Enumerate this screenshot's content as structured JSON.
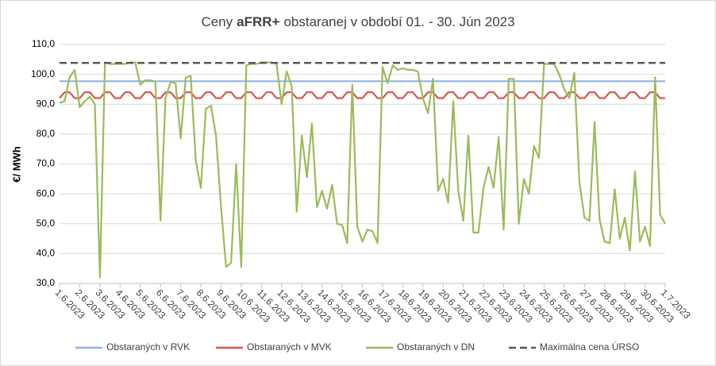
{
  "chart_data": {
    "type": "line",
    "title": [
      "Ceny",
      "aFRR+",
      "obstaranej v období 01. - 30. Jún 2023"
    ],
    "ylabel": "€/ MWh",
    "ylim": [
      30,
      110
    ],
    "yticks": [
      {
        "value": 30,
        "label": "30,0"
      },
      {
        "value": 40,
        "label": "40,0"
      },
      {
        "value": 50,
        "label": "50,0"
      },
      {
        "value": 60,
        "label": "60,0"
      },
      {
        "value": 70,
        "label": "70,0"
      },
      {
        "value": 80,
        "label": "80,0"
      },
      {
        "value": 90,
        "label": "90,0"
      },
      {
        "value": 100,
        "label": "100,0"
      },
      {
        "value": 110,
        "label": "110,0"
      }
    ],
    "xlim": [
      0,
      30
    ],
    "xticks": [
      {
        "value": 0,
        "label": "1.6.2023"
      },
      {
        "value": 1,
        "label": "2.6.2023"
      },
      {
        "value": 2,
        "label": "3.6.2023"
      },
      {
        "value": 3,
        "label": "4.6.2023"
      },
      {
        "value": 4,
        "label": "5.6.2023"
      },
      {
        "value": 5,
        "label": "6.6.2023"
      },
      {
        "value": 6,
        "label": "7.6.2023"
      },
      {
        "value": 7,
        "label": "8.6.2023"
      },
      {
        "value": 8,
        "label": "9.6.2023"
      },
      {
        "value": 9,
        "label": "10.6.2023"
      },
      {
        "value": 10,
        "label": "11.6.2023"
      },
      {
        "value": 11,
        "label": "12.6.2023"
      },
      {
        "value": 12,
        "label": "13.6.2023"
      },
      {
        "value": 13,
        "label": "14.6.2023"
      },
      {
        "value": 14,
        "label": "15.6.2023"
      },
      {
        "value": 15,
        "label": "16.6.2023"
      },
      {
        "value": 16,
        "label": "17.6.2023"
      },
      {
        "value": 17,
        "label": "18.6.2023"
      },
      {
        "value": 18,
        "label": "19.6.2023"
      },
      {
        "value": 19,
        "label": "20.6.2023"
      },
      {
        "value": 20,
        "label": "21.6.2023"
      },
      {
        "value": 21,
        "label": "22.6.2023"
      },
      {
        "value": 22,
        "label": "23.6.2023"
      },
      {
        "value": 23,
        "label": "24.6.2023"
      },
      {
        "value": 24,
        "label": "25.6.2023"
      },
      {
        "value": 25,
        "label": "26.6.2023"
      },
      {
        "value": 26,
        "label": "27.6.2023"
      },
      {
        "value": 27,
        "label": "28.6.2023"
      },
      {
        "value": 28,
        "label": "29.6.2023"
      },
      {
        "value": 29,
        "label": "30.6.2023"
      },
      {
        "value": 30,
        "label": "1.7.2023"
      }
    ],
    "grid": true,
    "legend": "bottom",
    "x": [
      0,
      0.25,
      0.5,
      0.75,
      1,
      1.25,
      1.5,
      1.75,
      2,
      2.25,
      2.5,
      2.75,
      3,
      3.25,
      3.5,
      3.75,
      4,
      4.25,
      4.5,
      4.75,
      5,
      5.25,
      5.5,
      5.75,
      6,
      6.25,
      6.5,
      6.75,
      7,
      7.25,
      7.5,
      7.75,
      8,
      8.25,
      8.5,
      8.75,
      9,
      9.25,
      9.5,
      9.75,
      10,
      10.25,
      10.5,
      10.75,
      11,
      11.25,
      11.5,
      11.75,
      12,
      12.25,
      12.5,
      12.75,
      13,
      13.25,
      13.5,
      13.75,
      14,
      14.25,
      14.5,
      14.75,
      15,
      15.25,
      15.5,
      15.75,
      16,
      16.25,
      16.5,
      16.75,
      17,
      17.25,
      17.5,
      17.75,
      18,
      18.25,
      18.5,
      18.75,
      19,
      19.25,
      19.5,
      19.75,
      20,
      20.25,
      20.5,
      20.75,
      21,
      21.25,
      21.5,
      21.75,
      22,
      22.25,
      22.5,
      22.75,
      23,
      23.25,
      23.5,
      23.75,
      24,
      24.25,
      24.5,
      24.75,
      25,
      25.25,
      25.5,
      25.75,
      26,
      26.25,
      26.5,
      26.75,
      27,
      27.25,
      27.5,
      27.75,
      28,
      28.25,
      28.5,
      28.75,
      29,
      29.25,
      29.5,
      29.75,
      30
    ],
    "series": [
      {
        "name": "Obstaraných v RVK",
        "color": "#8eb4e3",
        "x": [
          0,
          30
        ],
        "values": [
          97.7,
          97.7
        ]
      },
      {
        "name": "Obstaraných v MVK",
        "color": "#d9534f",
        "values": [
          92,
          94,
          94,
          92,
          92,
          94,
          94,
          92,
          92,
          94,
          94,
          92,
          92,
          94,
          94,
          92,
          92,
          94,
          94,
          92,
          92,
          94,
          94,
          92,
          92,
          94,
          94,
          92,
          92,
          94,
          94,
          92,
          92,
          94,
          94,
          92,
          92,
          94,
          94,
          92,
          92,
          94,
          94,
          92,
          92,
          94,
          94,
          92,
          92,
          94,
          94,
          92,
          92,
          94,
          94,
          92,
          92,
          94,
          94,
          92,
          92,
          94,
          94,
          92,
          92,
          94,
          94,
          92,
          92,
          94,
          94,
          92,
          92,
          94,
          94,
          92,
          92,
          94,
          94,
          92,
          92,
          94,
          94,
          92,
          92,
          94,
          94,
          92,
          92,
          94,
          94,
          92,
          92,
          94,
          94,
          92,
          92,
          94,
          94,
          92,
          92,
          94,
          94,
          92,
          92,
          94,
          94,
          92,
          92,
          94,
          94,
          92,
          92,
          94,
          94,
          92,
          92,
          94,
          94,
          92,
          92
        ]
      },
      {
        "name": "Obstaraných v DN",
        "color": "#9bbb59",
        "values": [
          90.5,
          91,
          99,
          101.5,
          89,
          91,
          92.5,
          90,
          32,
          104,
          103.5,
          103.5,
          103.5,
          103.5,
          104,
          104,
          96.5,
          98,
          98,
          97.5,
          51,
          92,
          97.5,
          97,
          78.5,
          99,
          99.5,
          71,
          62,
          88.5,
          89.5,
          79.5,
          55.5,
          35.5,
          37,
          70,
          35.5,
          103,
          103.5,
          103.5,
          104,
          104,
          104,
          103.5,
          90,
          101,
          96,
          54,
          79.5,
          65.5,
          83.5,
          55.5,
          61,
          55,
          63,
          50,
          49.5,
          43.5,
          96.5,
          49,
          44,
          48,
          47.5,
          43.5,
          102.5,
          97,
          103,
          101.5,
          102,
          101.5,
          101.5,
          101,
          92,
          87,
          98.5,
          61,
          65,
          57,
          91,
          61,
          51,
          79.5,
          47,
          47,
          62,
          69,
          62,
          79,
          48,
          98.5,
          98.5,
          50,
          65,
          60,
          76,
          72,
          103.5,
          103.5,
          103.5,
          100,
          95,
          92,
          100.5,
          64,
          52,
          51,
          84,
          51.5,
          44,
          43.5,
          61.5,
          45,
          52,
          41,
          67.5,
          44,
          49,
          42.5,
          99,
          53,
          50
        ]
      },
      {
        "name": "Maximálna cena ÚRSO",
        "color": "#595959",
        "dash": true,
        "x": [
          0,
          30
        ],
        "values": [
          103.8,
          103.8
        ]
      }
    ]
  }
}
